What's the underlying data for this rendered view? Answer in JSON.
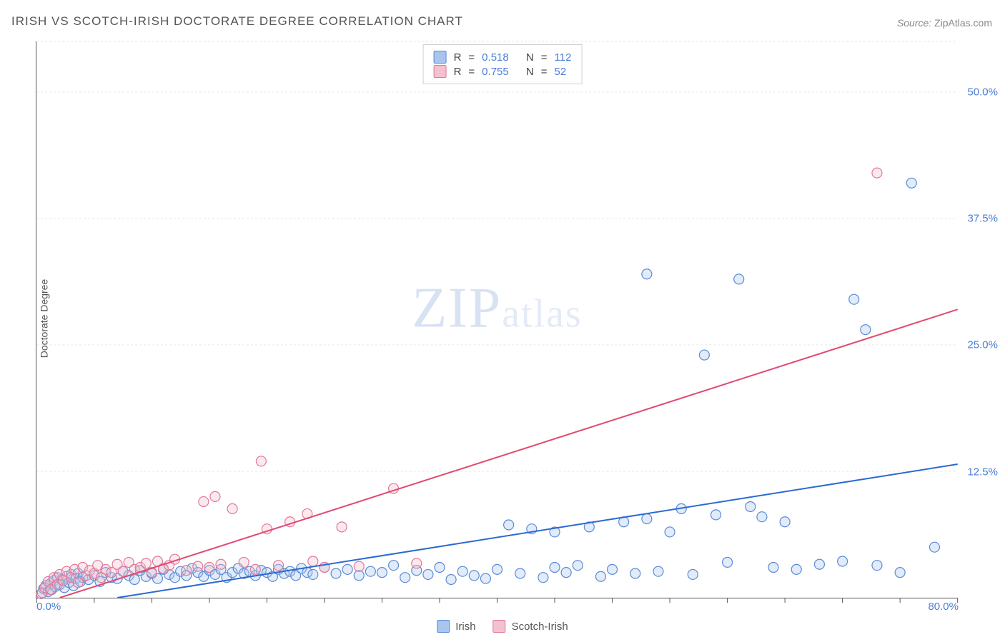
{
  "title": "IRISH VS SCOTCH-IRISH DOCTORATE DEGREE CORRELATION CHART",
  "source_label": "Source:",
  "source_value": "ZipAtlas.com",
  "ylabel": "Doctorate Degree",
  "watermark": {
    "zip": "ZIP",
    "atlas": "atlas"
  },
  "chart": {
    "type": "scatter",
    "xlim": [
      0,
      80
    ],
    "ylim": [
      0,
      55
    ],
    "x_tick_step": 5,
    "x_tick_labels": {
      "0": "0.0%",
      "80": "80.0%"
    },
    "y_tick_labels": {
      "12.5": "12.5%",
      "25": "25.0%",
      "37.5": "37.5%",
      "50": "50.0%"
    },
    "grid_color": "#e6e6e6",
    "grid_dash": "3,3",
    "axis_color": "#555555",
    "tick_len": 7,
    "background_color": "#ffffff",
    "point_radius": 7,
    "point_stroke_width": 1.2,
    "point_fill_opacity": 0.35,
    "trend_line_width": 2,
    "series": [
      {
        "name": "Irish",
        "color_fill": "#a9c5ee",
        "color_stroke": "#5b8bd4",
        "trend_color": "#2b6ad1",
        "r": 0.518,
        "n": 112,
        "trend": {
          "x1": 7,
          "y1": 0,
          "x2": 80,
          "y2": 13.2
        },
        "points": [
          [
            0.5,
            0.5
          ],
          [
            0.6,
            0.9
          ],
          [
            0.8,
            1.2
          ],
          [
            1.0,
            0.6
          ],
          [
            1.2,
            1.4
          ],
          [
            1.3,
            0.8
          ],
          [
            1.5,
            1.7
          ],
          [
            1.6,
            1.1
          ],
          [
            1.8,
            2.0
          ],
          [
            2.0,
            1.3
          ],
          [
            2.2,
            1.8
          ],
          [
            2.4,
            1.0
          ],
          [
            2.6,
            2.1
          ],
          [
            2.8,
            1.5
          ],
          [
            3.0,
            2.3
          ],
          [
            3.2,
            1.2
          ],
          [
            3.4,
            1.9
          ],
          [
            3.6,
            2.4
          ],
          [
            3.8,
            1.6
          ],
          [
            4.0,
            2.0
          ],
          [
            4.5,
            1.8
          ],
          [
            5.0,
            2.2
          ],
          [
            5.5,
            1.6
          ],
          [
            6.0,
            2.5
          ],
          [
            6.5,
            2.0
          ],
          [
            7.0,
            1.9
          ],
          [
            7.5,
            2.6
          ],
          [
            8.0,
            2.2
          ],
          [
            8.5,
            1.8
          ],
          [
            9.0,
            2.7
          ],
          [
            9.5,
            2.1
          ],
          [
            10,
            2.4
          ],
          [
            10.5,
            1.9
          ],
          [
            11,
            2.8
          ],
          [
            11.5,
            2.3
          ],
          [
            12,
            2.0
          ],
          [
            12.5,
            2.6
          ],
          [
            13,
            2.2
          ],
          [
            13.5,
            2.9
          ],
          [
            14,
            2.5
          ],
          [
            14.5,
            2.1
          ],
          [
            15,
            2.7
          ],
          [
            15.5,
            2.3
          ],
          [
            16,
            2.8
          ],
          [
            16.5,
            2.0
          ],
          [
            17,
            2.5
          ],
          [
            17.5,
            2.9
          ],
          [
            18,
            2.4
          ],
          [
            18.5,
            2.6
          ],
          [
            19,
            2.2
          ],
          [
            19.5,
            2.7
          ],
          [
            20,
            2.5
          ],
          [
            20.5,
            2.1
          ],
          [
            21,
            2.8
          ],
          [
            21.5,
            2.4
          ],
          [
            22,
            2.6
          ],
          [
            22.5,
            2.2
          ],
          [
            23,
            2.9
          ],
          [
            23.5,
            2.5
          ],
          [
            24,
            2.3
          ],
          [
            25,
            3.0
          ],
          [
            26,
            2.4
          ],
          [
            27,
            2.8
          ],
          [
            28,
            2.2
          ],
          [
            29,
            2.6
          ],
          [
            30,
            2.5
          ],
          [
            31,
            3.2
          ],
          [
            32,
            2.0
          ],
          [
            33,
            2.7
          ],
          [
            34,
            2.3
          ],
          [
            35,
            3.0
          ],
          [
            36,
            1.8
          ],
          [
            37,
            2.6
          ],
          [
            38,
            2.2
          ],
          [
            39,
            1.9
          ],
          [
            40,
            2.8
          ],
          [
            41,
            7.2
          ],
          [
            42,
            2.4
          ],
          [
            43,
            6.8
          ],
          [
            44,
            2.0
          ],
          [
            45,
            3.0
          ],
          [
            46,
            2.5
          ],
          [
            47,
            3.2
          ],
          [
            48,
            7.0
          ],
          [
            49,
            2.1
          ],
          [
            50,
            2.8
          ],
          [
            51,
            7.5
          ],
          [
            52,
            2.4
          ],
          [
            53,
            7.8
          ],
          [
            54,
            2.6
          ],
          [
            55,
            6.5
          ],
          [
            56,
            8.8
          ],
          [
            57,
            2.3
          ],
          [
            58,
            24.0
          ],
          [
            59,
            8.2
          ],
          [
            60,
            3.5
          ],
          [
            61,
            31.5
          ],
          [
            62,
            9.0
          ],
          [
            63,
            8.0
          ],
          [
            64,
            3.0
          ],
          [
            65,
            7.5
          ],
          [
            66,
            2.8
          ],
          [
            68,
            3.3
          ],
          [
            70,
            3.6
          ],
          [
            71,
            29.5
          ],
          [
            72,
            26.5
          ],
          [
            73,
            3.2
          ],
          [
            75,
            2.5
          ],
          [
            76,
            41.0
          ],
          [
            78,
            5.0
          ],
          [
            53,
            32.0
          ],
          [
            45,
            6.5
          ]
        ]
      },
      {
        "name": "Scotch-Irish",
        "color_fill": "#f4c1ce",
        "color_stroke": "#e07a99",
        "trend_color": "#e14a70",
        "r": 0.755,
        "n": 52,
        "trend": {
          "x1": 2,
          "y1": 0,
          "x2": 80,
          "y2": 28.5
        },
        "points": [
          [
            0.4,
            0.4
          ],
          [
            0.7,
            1.0
          ],
          [
            1.0,
            1.6
          ],
          [
            1.2,
            0.8
          ],
          [
            1.5,
            2.0
          ],
          [
            1.8,
            1.3
          ],
          [
            2.0,
            2.3
          ],
          [
            2.3,
            1.7
          ],
          [
            2.6,
            2.6
          ],
          [
            3.0,
            2.0
          ],
          [
            3.3,
            2.8
          ],
          [
            3.6,
            1.5
          ],
          [
            4.0,
            3.0
          ],
          [
            4.3,
            2.2
          ],
          [
            4.6,
            2.7
          ],
          [
            5.0,
            2.4
          ],
          [
            5.3,
            3.2
          ],
          [
            5.6,
            2.0
          ],
          [
            6.0,
            2.8
          ],
          [
            6.5,
            2.5
          ],
          [
            7.0,
            3.3
          ],
          [
            7.5,
            2.6
          ],
          [
            8.0,
            3.5
          ],
          [
            8.5,
            2.8
          ],
          [
            9.0,
            3.0
          ],
          [
            9.5,
            3.4
          ],
          [
            10,
            2.5
          ],
          [
            10.5,
            3.6
          ],
          [
            11,
            2.9
          ],
          [
            11.5,
            3.2
          ],
          [
            12,
            3.8
          ],
          [
            13,
            2.7
          ],
          [
            14,
            3.1
          ],
          [
            14.5,
            9.5
          ],
          [
            15,
            3.0
          ],
          [
            15.5,
            10.0
          ],
          [
            16,
            3.3
          ],
          [
            17,
            8.8
          ],
          [
            18,
            3.5
          ],
          [
            19,
            2.8
          ],
          [
            19.5,
            13.5
          ],
          [
            20,
            6.8
          ],
          [
            21,
            3.2
          ],
          [
            22,
            7.5
          ],
          [
            23.5,
            8.3
          ],
          [
            24,
            3.6
          ],
          [
            25,
            3.0
          ],
          [
            26.5,
            7.0
          ],
          [
            28,
            3.1
          ],
          [
            31,
            10.8
          ],
          [
            33,
            3.4
          ],
          [
            73,
            42.0
          ]
        ]
      }
    ]
  },
  "legend_top": {
    "r_label": "R",
    "n_label": "N",
    "eq": "="
  },
  "legend_bottom": [
    {
      "label": "Irish",
      "fill": "#a9c5ee",
      "stroke": "#5b8bd4"
    },
    {
      "label": "Scotch-Irish",
      "fill": "#f4c1ce",
      "stroke": "#e07a99"
    }
  ]
}
